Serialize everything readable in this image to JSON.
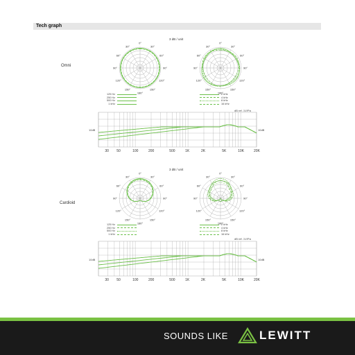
{
  "header": {
    "title": "Tech graph"
  },
  "sections": [
    {
      "pattern": "Omni",
      "unit": "3 dB / unit",
      "angles": [
        "0°",
        "30°",
        "30°",
        "60°",
        "60°",
        "90°",
        "90°",
        "120°",
        "120°",
        "150°",
        "150°",
        "180°"
      ],
      "legend_left": [
        "125 Hz",
        "250 Hz",
        "500 Hz",
        "1 kHz"
      ],
      "legend_right": [
        "2 kHz",
        "4 kHz",
        "8 kHz",
        "16 kHz"
      ],
      "fr_ref": "dB ref. 1V/Pa",
      "fr_left": "10dB",
      "fr_right": "10dB",
      "freq_ticks": [
        "30",
        "50",
        "100",
        "200",
        "500",
        "1K",
        "2K",
        "5K",
        "10K",
        "20K"
      ]
    },
    {
      "pattern": "Cardioid",
      "unit": "3 dB / unit",
      "angles": [
        "0°",
        "30°",
        "30°",
        "60°",
        "60°",
        "90°",
        "90°",
        "120°",
        "120°",
        "150°",
        "150°",
        "180°"
      ],
      "legend_left": [
        "125 Hz",
        "250 Hz",
        "500 Hz",
        "1 kHz"
      ],
      "legend_right": [
        "2 kHz",
        "4 kHz",
        "8 kHz",
        "16 kHz"
      ],
      "fr_ref": "dB ref. 1V/Pa",
      "fr_left": "10dB",
      "fr_right": "10dB",
      "freq_ticks": [
        "30",
        "50",
        "100",
        "200",
        "500",
        "1K",
        "2K",
        "5K",
        "10K",
        "20K"
      ]
    }
  ],
  "footer": {
    "slogan": "SOUNDS LIKE",
    "brand": "LEWITT"
  },
  "colors": {
    "accent": "#7ac143",
    "curve": "#6cc04a",
    "grid": "#999999",
    "footer_bg": "#1a1a1a"
  }
}
